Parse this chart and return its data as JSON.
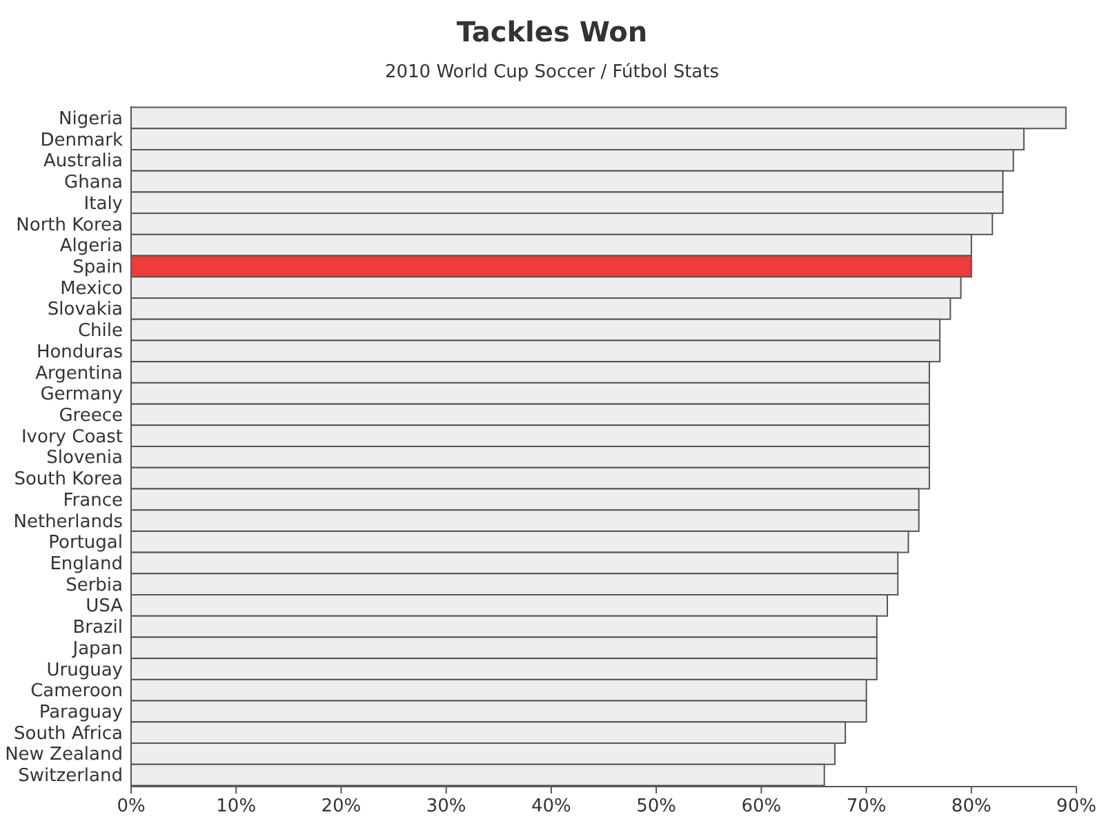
{
  "chart_data": {
    "type": "bar",
    "orientation": "horizontal",
    "title": "Tackles Won",
    "subtitle": "2010 World Cup Soccer / Fútbol Stats",
    "categories": [
      "Nigeria",
      "Denmark",
      "Australia",
      "Ghana",
      "Italy",
      "North Korea",
      "Algeria",
      "Spain",
      "Mexico",
      "Slovakia",
      "Chile",
      "Honduras",
      "Argentina",
      "Germany",
      "Greece",
      "Ivory Coast",
      "Slovenia",
      "South Korea",
      "France",
      "Netherlands",
      "Portugal",
      "England",
      "Serbia",
      "USA",
      "Brazil",
      "Japan",
      "Uruguay",
      "Cameroon",
      "Paraguay",
      "South Africa",
      "New Zealand",
      "Switzerland"
    ],
    "values": [
      89,
      85,
      84,
      83,
      83,
      82,
      80,
      80,
      79,
      78,
      77,
      77,
      76,
      76,
      76,
      76,
      76,
      76,
      75,
      75,
      74,
      73,
      73,
      72,
      71,
      71,
      71,
      70,
      70,
      68,
      67,
      66
    ],
    "colors": [
      "#eeeeee",
      "#eeeeee",
      "#eeeeee",
      "#eeeeee",
      "#eeeeee",
      "#eeeeee",
      "#eeeeee",
      "#ee3b3b",
      "#eeeeee",
      "#eeeeee",
      "#eeeeee",
      "#eeeeee",
      "#eeeeee",
      "#eeeeee",
      "#eeeeee",
      "#eeeeee",
      "#eeeeee",
      "#eeeeee",
      "#eeeeee",
      "#eeeeee",
      "#eeeeee",
      "#eeeeee",
      "#eeeeee",
      "#eeeeee",
      "#eeeeee",
      "#eeeeee",
      "#eeeeee",
      "#eeeeee",
      "#eeeeee",
      "#eeeeee",
      "#eeeeee",
      "#eeeeee"
    ],
    "xlim": [
      0,
      90
    ],
    "xticks": [
      {
        "value": 0,
        "label": "0%"
      },
      {
        "value": 10,
        "label": "10%"
      },
      {
        "value": 20,
        "label": "20%"
      },
      {
        "value": 30,
        "label": "30%"
      },
      {
        "value": 40,
        "label": "40%"
      },
      {
        "value": 50,
        "label": "50%"
      },
      {
        "value": 60,
        "label": "60%"
      },
      {
        "value": 70,
        "label": "70%"
      },
      {
        "value": 80,
        "label": "80%"
      },
      {
        "value": 90,
        "label": "90%"
      }
    ]
  }
}
